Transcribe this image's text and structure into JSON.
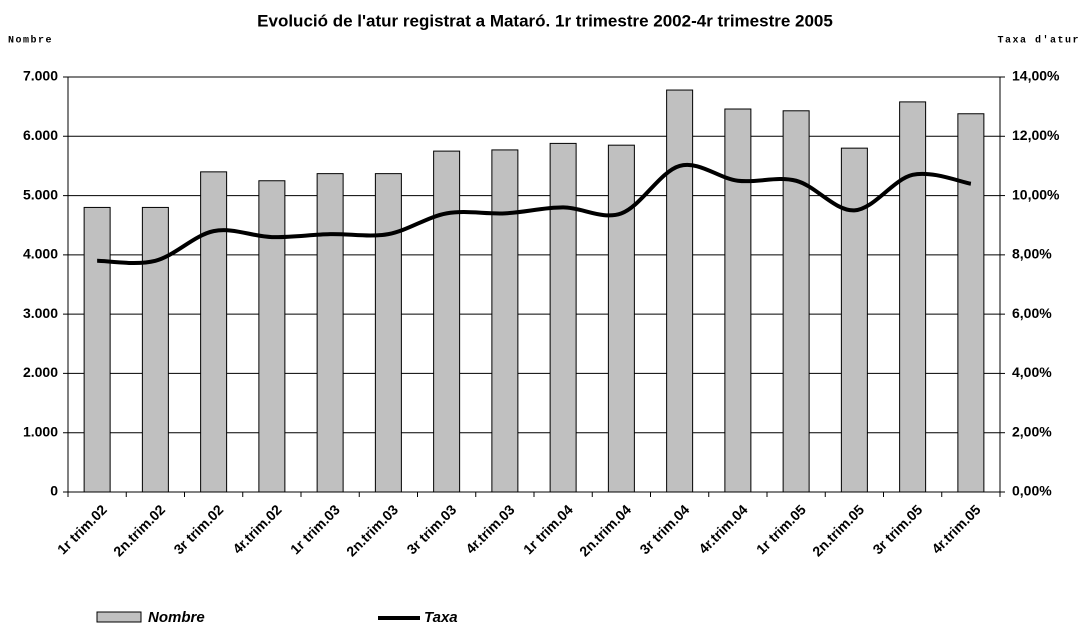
{
  "chart_data": {
    "type": "bar_line",
    "title": "Evolució de l'atur registrat a Mataró. 1r trimestre 2002-4r trimestre 2005",
    "ylabel": "Nombre",
    "y2label": "Taxa d'atur",
    "categories": [
      "1r trim.02",
      "2n.trim.02",
      "3r trim.02",
      "4r.trim.02",
      "1r trim.03",
      "2n.trim.03",
      "3r trim.03",
      "4r.trim.03",
      "1r trim.04",
      "2n.trim.04",
      "3r trim.04",
      "4r.trim.04",
      "1r trim.05",
      "2n.trim.05",
      "3r trim.05",
      "4r.trim.05"
    ],
    "series": [
      {
        "name": "Nombre",
        "color": "#c0c0c0",
        "values": [
          4800,
          4800,
          5400,
          5250,
          5370,
          5370,
          5750,
          5770,
          5880,
          5850,
          6780,
          6460,
          6430,
          5800,
          6580,
          6380
        ]
      },
      {
        "name": "Taxa",
        "color": "#000000",
        "axis": "y2",
        "values": [
          7.8,
          7.8,
          8.8,
          8.6,
          8.7,
          8.7,
          9.4,
          9.4,
          9.6,
          9.4,
          11.0,
          10.5,
          10.5,
          9.5,
          10.7,
          10.4
        ]
      }
    ],
    "ylim": [
      0,
      7000
    ],
    "yticks": [
      0,
      {
        "value": 1000,
        "label": "1.000"
      },
      {
        "value": 2000,
        "label": "2.000"
      },
      {
        "value": 3000,
        "label": "3.000"
      },
      {
        "value": 4000,
        "label": "4.000"
      },
      {
        "value": 5000,
        "label": "5.000"
      },
      {
        "value": 6000,
        "label": "6.000"
      },
      {
        "value": 7000,
        "label": "7.000"
      }
    ],
    "y2lim": [
      0,
      14
    ],
    "y2ticks": [
      {
        "value": 0,
        "label": "0,00%"
      },
      {
        "value": 2,
        "label": "2,00%"
      },
      {
        "value": 4,
        "label": "4,00%"
      },
      {
        "value": 6,
        "label": "6,00%"
      },
      {
        "value": 8,
        "label": "8,00%"
      },
      {
        "value": 10,
        "label": "10,00%"
      },
      {
        "value": 12,
        "label": "12,00%"
      },
      {
        "value": 14,
        "label": "14,00%"
      }
    ],
    "grid": true
  }
}
